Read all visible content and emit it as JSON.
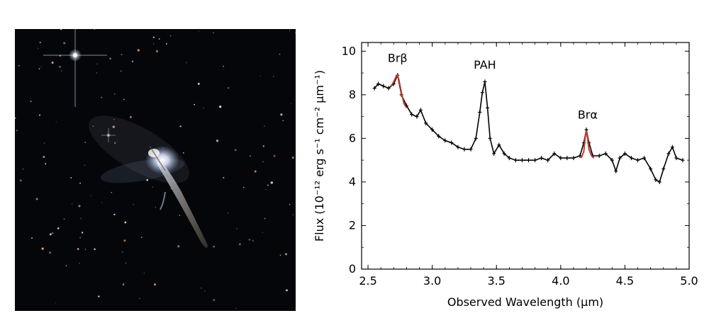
{
  "image_panel": {
    "background_color": "#05060a",
    "icon": "galaxy-icon"
  },
  "chart_data": {
    "type": "scatter",
    "xlabel": "Observed Wavelength (μm)",
    "ylabel": "Flux (10⁻¹² erg s⁻¹ cm⁻² μm⁻¹)",
    "xlim": [
      2.45,
      5.0
    ],
    "ylim": [
      0,
      10.4
    ],
    "xticks": [
      "2.5",
      "3.0",
      "3.5",
      "4.0",
      "4.5",
      "5.0"
    ],
    "yticks": [
      "0",
      "2",
      "4",
      "6",
      "8",
      "10"
    ],
    "grid": false,
    "colors": {
      "data": "#000000",
      "fit": "#c0392b"
    },
    "series": [
      {
        "marker": "cross",
        "x": [
          2.55,
          2.58,
          2.62,
          2.66,
          2.7,
          2.73,
          2.76,
          2.8,
          2.84,
          2.88,
          2.91,
          2.95,
          3.0,
          3.05,
          3.1,
          3.15,
          3.2,
          3.25,
          3.3,
          3.34,
          3.37,
          3.39,
          3.41,
          3.43,
          3.45,
          3.48,
          3.52,
          3.56,
          3.6,
          3.65,
          3.7,
          3.75,
          3.8,
          3.85,
          3.9,
          3.95,
          4.0,
          4.05,
          4.1,
          4.15,
          4.18,
          4.2,
          4.22,
          4.25,
          4.3,
          4.35,
          4.4,
          4.43,
          4.46,
          4.5,
          4.55,
          4.6,
          4.65,
          4.7,
          4.74,
          4.77,
          4.8,
          4.84,
          4.87,
          4.9,
          4.95
        ],
        "y": [
          8.3,
          8.5,
          8.4,
          8.3,
          8.5,
          8.9,
          8.0,
          7.5,
          7.1,
          7.0,
          7.3,
          6.7,
          6.4,
          6.1,
          5.9,
          5.8,
          5.6,
          5.5,
          5.5,
          6.0,
          7.2,
          8.1,
          8.6,
          7.4,
          6.0,
          5.3,
          5.7,
          5.3,
          5.1,
          5.0,
          5.0,
          5.0,
          5.0,
          5.1,
          5.0,
          5.3,
          5.1,
          5.1,
          5.1,
          5.2,
          5.8,
          6.4,
          5.8,
          5.2,
          5.2,
          5.3,
          5.0,
          4.5,
          5.1,
          5.3,
          5.1,
          5.0,
          5.1,
          4.6,
          4.1,
          4.0,
          4.6,
          5.3,
          5.6,
          5.1,
          5.0
        ]
      },
      {
        "marker": "line",
        "x": [
          2.68,
          2.7,
          2.72,
          2.73,
          2.74,
          2.76,
          2.78,
          2.8
        ],
        "y": [
          8.4,
          8.6,
          8.85,
          8.9,
          8.7,
          8.1,
          7.6,
          7.4
        ]
      },
      {
        "marker": "line",
        "x": [
          4.16,
          4.18,
          4.19,
          4.2,
          4.21,
          4.22,
          4.24,
          4.26
        ],
        "y": [
          5.1,
          5.4,
          6.0,
          6.35,
          6.0,
          5.5,
          5.2,
          5.1
        ]
      }
    ],
    "annotations": [
      {
        "text": "Brβ",
        "x": 2.73,
        "y": 9.5
      },
      {
        "text": "PAH",
        "x": 3.41,
        "y": 9.2
      },
      {
        "text": "Brα",
        "x": 4.21,
        "y": 6.9
      }
    ]
  }
}
